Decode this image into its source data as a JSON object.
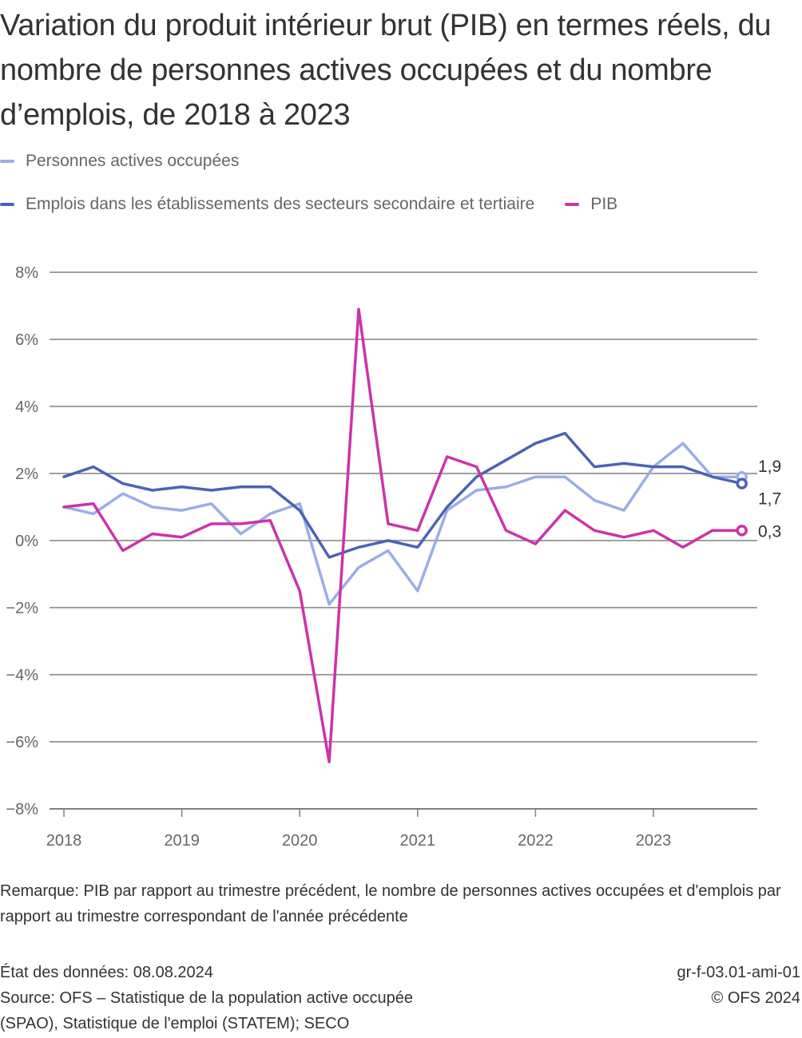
{
  "title": "Variation du produit intérieur brut (PIB) en termes réels, du nombre de personnes actives occupées et du nombre d’emplois, de 2018 à 2023",
  "note": "Remarque: PIB par rapport au trimestre précédent, le nombre de personnes actives occupées et d'emplois par rapport au trimestre correspondant de l'année précédente",
  "footer": {
    "data_state": "État des données: 08.08.2024",
    "source_line1": "Source: OFS – Statistique de la population active occupée",
    "source_line2": "(SPAO), Statistique de l'emploi (STATEM); SECO",
    "chart_id": "gr-f-03.01-ami-01",
    "copyright": "© OFS 2024"
  },
  "chart_data": {
    "type": "line",
    "title": "Variation du produit intérieur brut (PIB) en termes réels, du nombre de personnes actives occupées et du nombre d’emplois, de 2018 à 2023",
    "xlabel": "",
    "ylabel": "",
    "ylim": [
      -8,
      8
    ],
    "yticks": [
      8,
      6,
      4,
      2,
      0,
      -2,
      -4,
      -6,
      -8
    ],
    "ytick_labels": [
      "8%",
      "6%",
      "4%",
      "2%",
      "0%",
      "−2%",
      "−4%",
      "−6%",
      "−8%"
    ],
    "xtick_labels": [
      "2018",
      "2019",
      "2020",
      "2021",
      "2022",
      "2023"
    ],
    "grid": true,
    "legend_position": "top-left",
    "x": [
      "2018 T1",
      "2018 T2",
      "2018 T3",
      "2018 T4",
      "2019 T1",
      "2019 T2",
      "2019 T3",
      "2019 T4",
      "2020 T1",
      "2020 T2",
      "2020 T3",
      "2020 T4",
      "2021 T1",
      "2021 T2",
      "2021 T3",
      "2021 T4",
      "2022 T1",
      "2022 T2",
      "2022 T3",
      "2022 T4",
      "2023 T1",
      "2023 T2",
      "2023 T3",
      "2023 T4"
    ],
    "series": [
      {
        "name": "Personnes actives occupées",
        "color": "#9aaee6",
        "values": [
          1.0,
          0.8,
          1.4,
          1.0,
          0.9,
          1.1,
          0.2,
          0.8,
          1.1,
          -1.9,
          -0.8,
          -0.3,
          -1.5,
          0.9,
          1.5,
          1.6,
          1.9,
          1.9,
          1.2,
          0.9,
          2.2,
          2.9,
          1.9,
          1.9
        ],
        "end_label": "1,9"
      },
      {
        "name": "Emplois dans les établissements des secteurs secondaire et tertiaire",
        "color": "#4a63b5",
        "values": [
          1.9,
          2.2,
          1.7,
          1.5,
          1.6,
          1.5,
          1.6,
          1.6,
          0.9,
          -0.5,
          -0.2,
          0.0,
          -0.2,
          1.0,
          1.9,
          2.4,
          2.9,
          3.2,
          2.2,
          2.3,
          2.2,
          2.2,
          1.9,
          1.7
        ],
        "end_label": "1,7"
      },
      {
        "name": "PIB",
        "color": "#cc33aa",
        "values": [
          1.0,
          1.1,
          -0.3,
          0.2,
          0.1,
          0.5,
          0.5,
          0.6,
          -1.5,
          -6.6,
          6.9,
          0.5,
          0.3,
          2.5,
          2.2,
          0.3,
          -0.1,
          0.9,
          0.3,
          0.1,
          0.3,
          -0.2,
          0.3,
          0.3
        ],
        "end_label": "0,3"
      }
    ]
  }
}
